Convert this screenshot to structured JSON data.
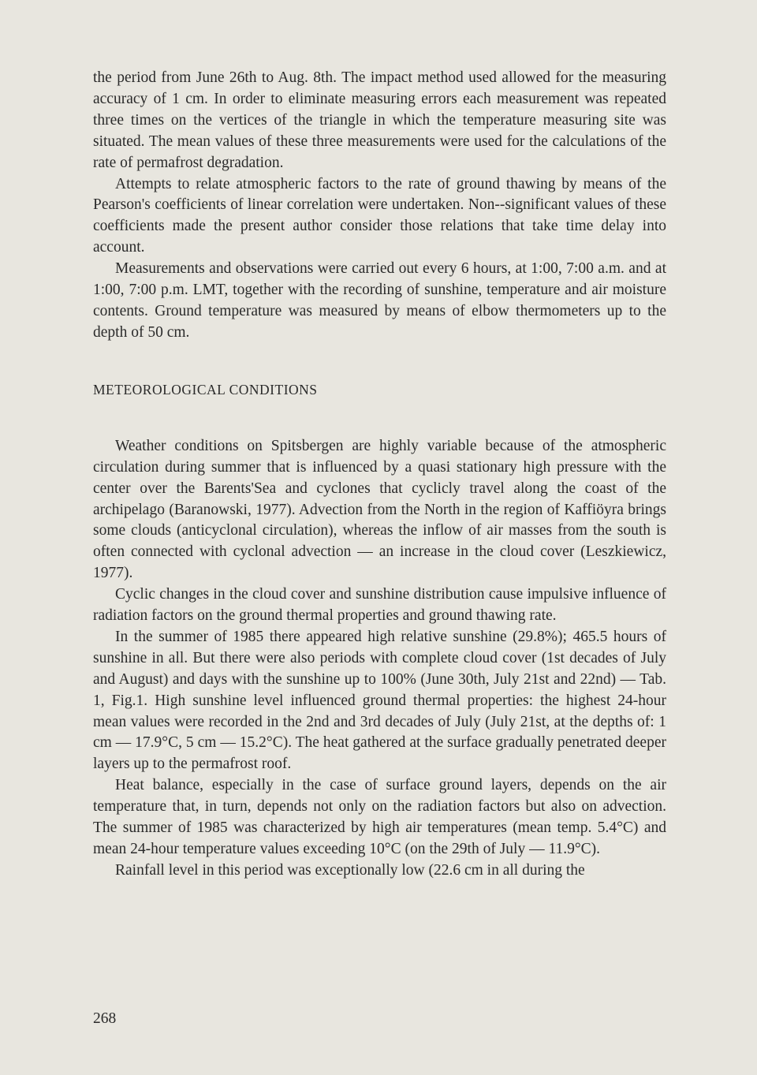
{
  "page": {
    "number": "268",
    "background_color": "#e8e6df",
    "text_color": "#2a2a2a",
    "body_fontsize": 19.5,
    "heading_fontsize": 17.5,
    "line_height": 1.38
  },
  "section1": {
    "paragraphs": [
      "the period from June 26th to Aug. 8th. The impact method used allowed for the measuring accuracy of 1 cm. In order to eliminate measuring errors each measurement was repeated three times on the vertices of the triangle in which the temperature measuring site was situated. The mean values of these three measurements were used for the calculations of the rate of permafrost degradation.",
      "Attempts to relate atmospheric factors to the rate of ground thawing by means of the Pearson's coefficients of linear correlation were undertaken. Non--significant values of these coefficients made the present author consider those relations that take time delay into account.",
      "Measurements and observations were carried out every 6 hours, at 1:00, 7:00 a.m. and at 1:00, 7:00 p.m. LMT, together with the recording of sunshine, temperature and air moisture contents. Ground temperature was measured by means of elbow thermometers up to the depth of 50 cm."
    ]
  },
  "section2": {
    "heading": "METEOROLOGICAL CONDITIONS",
    "paragraphs": [
      "Weather conditions on Spitsbergen are highly variable because of the atmospheric circulation during summer that is influenced by a quasi stationary high pressure with the center over the Barents'Sea and cyclones that cyclicly travel along the coast of the archipelago (Baranowski, 1977). Advection from the North in the region of Kaffiöyra brings some clouds (anticyclonal circulation), whereas the inflow of air masses from the south is often connected with cyclonal advection — an increase in the cloud cover (Leszkiewicz, 1977).",
      "Cyclic changes in the cloud cover and sunshine distribution cause impulsive influence of radiation factors on the ground thermal properties and ground thawing rate.",
      "In the summer of 1985 there appeared high relative sunshine (29.8%); 465.5 hours of sunshine in all. But there were also periods with complete cloud cover (1st decades of July and August) and days with the sunshine up to 100% (June 30th, July 21st and 22nd) — Tab. 1, Fig.1. High sunshine level influenced ground thermal properties: the highest 24-hour mean values were recorded in the 2nd and 3rd decades of July (July 21st, at the depths of: 1 cm — 17.9°C, 5 cm — 15.2°C). The heat gathered at the surface gradually penetrated deeper layers up to the permafrost roof.",
      "Heat balance, especially in the case of surface ground layers, depends on the air temperature that, in turn, depends not only on the radiation factors but also on advection. The summer of 1985 was characterized by high air temperatures (mean temp. 5.4°C) and mean 24-hour temperature values exceeding 10°C (on the 29th of July — 11.9°C).",
      "Rainfall level in this period was exceptionally low (22.6 cm in all during the"
    ]
  }
}
